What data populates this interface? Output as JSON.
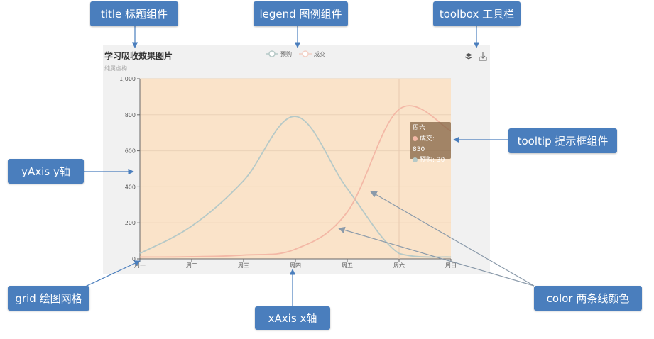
{
  "callouts": {
    "title": "title 标题组件",
    "legend": "legend 图例组件",
    "toolbox": "toolbox 工具栏",
    "tooltip": "tooltip 提示框组件",
    "yaxis": "yAxis y轴",
    "grid": "grid 绘图网格",
    "xaxis": "xAxis x轴",
    "color": "color 两条线颜色"
  },
  "chart_data": {
    "type": "line",
    "title": "学习吸收效果图片",
    "subtitle": "纯属虚构",
    "categories": [
      "周一",
      "周二",
      "周三",
      "周四",
      "周五",
      "周六",
      "周日"
    ],
    "series": [
      {
        "name": "预购",
        "values": [
          30,
          182,
          434,
          791,
          390,
          30,
          10
        ],
        "color": "#b6c9c7"
      },
      {
        "name": "成交",
        "values": [
          10,
          12,
          21,
          54,
          260,
          830,
          710
        ],
        "color": "#f3b8a6"
      }
    ],
    "yticks": [
      "0",
      "200",
      "400",
      "600",
      "800",
      "1,000"
    ],
    "ylim": [
      0,
      1000
    ],
    "plot_background": "#fae3c9",
    "grid": true,
    "legend_position": "top-center",
    "tooltip": {
      "category": "周六",
      "rows": [
        {
          "label": "成交: 830",
          "color": "#f3b8a6"
        },
        {
          "label": "预购: 30",
          "color": "#b6c9c7"
        }
      ]
    }
  },
  "colors": {
    "callout_bg": "#4a7ebd",
    "arrow": "#4a7ebd",
    "pointer": "#8a9aaa"
  },
  "toolbox": {
    "icons": [
      "stack-icon",
      "download-icon"
    ]
  }
}
